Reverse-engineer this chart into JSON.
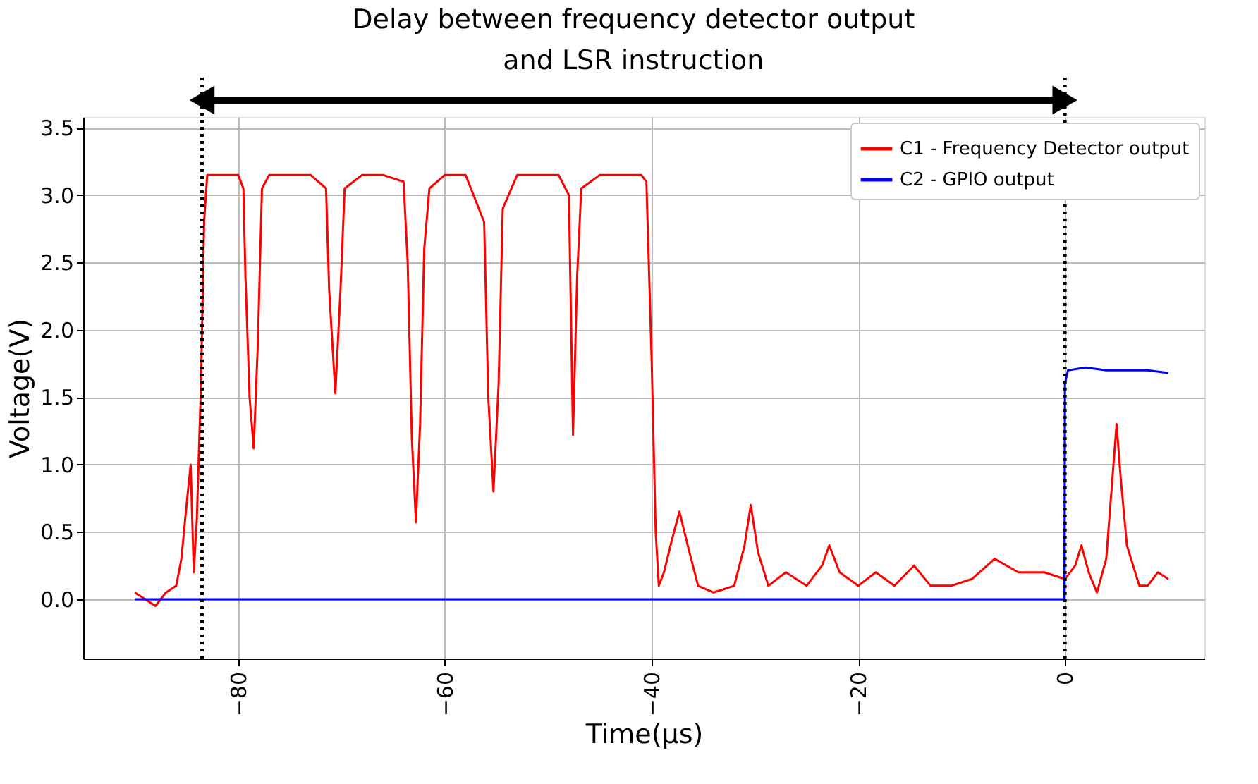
{
  "chart_data": {
    "type": "line",
    "xlabel": "Time(μs)",
    "ylabel": "Voltage(V)",
    "annotations": [
      "Delay between frequency detector output\nand LSR instruction"
    ],
    "xlim": [
      -95,
      13.5
    ],
    "ylim": [
      -0.44,
      3.58
    ],
    "xticks": [
      -80,
      -60,
      -40,
      -20,
      0
    ],
    "yticks": [
      {
        "value": 0,
        "label": "0.0"
      },
      0.5,
      {
        "value": 1,
        "label": "1.0"
      },
      1.5,
      {
        "value": 2,
        "label": "2.0"
      },
      2.5,
      {
        "value": 3,
        "label": "3.0"
      },
      3.5
    ],
    "grid": true,
    "legend": "top right",
    "line_style": "solid",
    "marker": "none",
    "ref_lines": [
      {
        "axis": "x",
        "value": -83.5,
        "color": "#000000",
        "line_style": "dotted"
      },
      {
        "axis": "x",
        "value": 0,
        "color": "#000000",
        "line_style": "dotted"
      }
    ],
    "series": [
      {
        "name": "C1 - Frequency Detector output",
        "color": "#ff0000",
        "x": [
          -90,
          -89,
          -88,
          -87,
          -86,
          -85.5,
          -85,
          -84.6,
          -84.3,
          -84,
          -83.6,
          -83.3,
          -83,
          -82,
          -81,
          -80,
          -79.5,
          -79.3,
          -78.9,
          -78.5,
          -78.1,
          -77.7,
          -77,
          -75,
          -73,
          -71.5,
          -71.2,
          -70.6,
          -70.1,
          -69.7,
          -68,
          -66,
          -64,
          -63.6,
          -63.2,
          -62.8,
          -62.4,
          -62,
          -61.5,
          -60,
          -58,
          -56.2,
          -55.8,
          -55.3,
          -54.8,
          -54.4,
          -53,
          -51,
          -49,
          -48,
          -47.6,
          -47.2,
          -46.8,
          -45,
          -43,
          -41,
          -40.5,
          -40,
          -39.6,
          -39.3,
          -38.8,
          -38,
          -37.3,
          -36.5,
          -35.5,
          -34,
          -32,
          -31,
          -30.4,
          -29.7,
          -28.7,
          -27,
          -25,
          -23.5,
          -22.8,
          -21.8,
          -20,
          -18.3,
          -16.5,
          -14.6,
          -13,
          -11,
          -9,
          -6.8,
          -4.5,
          -2,
          0,
          1,
          1.6,
          2.3,
          3.1,
          4,
          4.6,
          5,
          5.4,
          6,
          7.2,
          8,
          9,
          10
        ],
        "values": [
          0.05,
          0.0,
          -0.05,
          0.05,
          0.1,
          0.3,
          0.7,
          1.0,
          0.2,
          0.6,
          1.6,
          2.8,
          3.15,
          3.15,
          3.15,
          3.15,
          3.05,
          2.4,
          1.5,
          1.12,
          1.9,
          3.05,
          3.15,
          3.15,
          3.15,
          3.05,
          2.3,
          1.53,
          2.3,
          3.05,
          3.15,
          3.15,
          3.1,
          2.5,
          1.2,
          0.57,
          1.3,
          2.6,
          3.05,
          3.15,
          3.15,
          2.8,
          1.5,
          0.8,
          1.6,
          2.9,
          3.15,
          3.15,
          3.15,
          3.0,
          1.22,
          2.4,
          3.05,
          3.15,
          3.15,
          3.15,
          3.1,
          1.8,
          0.5,
          0.1,
          0.2,
          0.45,
          0.65,
          0.4,
          0.1,
          0.05,
          0.1,
          0.4,
          0.7,
          0.35,
          0.1,
          0.2,
          0.1,
          0.25,
          0.4,
          0.2,
          0.1,
          0.2,
          0.1,
          0.25,
          0.1,
          0.1,
          0.15,
          0.3,
          0.2,
          0.2,
          0.15,
          0.25,
          0.4,
          0.2,
          0.05,
          0.3,
          0.9,
          1.3,
          0.9,
          0.4,
          0.1,
          0.1,
          0.2,
          0.15
        ]
      },
      {
        "name": "C2 - GPIO output",
        "color": "#0000ff",
        "x": [
          -90,
          -80,
          -70,
          -60,
          -50,
          -40,
          -30,
          -20,
          -10,
          -0.05,
          0,
          0.3,
          2,
          4,
          6,
          8,
          10
        ],
        "values": [
          0.0,
          0.0,
          0.0,
          0.0,
          0.0,
          0.0,
          0.0,
          0.0,
          0.0,
          0.0,
          1.6,
          1.7,
          1.72,
          1.7,
          1.7,
          1.7,
          1.68
        ]
      }
    ]
  }
}
